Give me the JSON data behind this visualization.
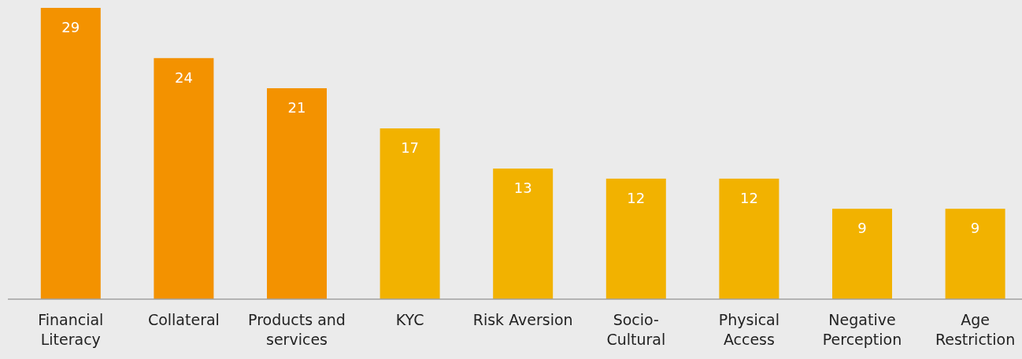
{
  "chart_data": {
    "type": "bar",
    "categories": [
      "Financial\nLiteracy",
      "Collateral",
      "Products and\nservices",
      "KYC",
      "Risk Aversion",
      "Socio-\nCultural",
      "Physical\nAccess",
      "Negative\nPerception",
      "Age\nRestriction"
    ],
    "values": [
      29,
      24,
      21,
      17,
      13,
      12,
      12,
      9,
      9
    ],
    "colors": [
      "#f39200",
      "#f39200",
      "#f39200",
      "#f2b200",
      "#f2b200",
      "#f2b200",
      "#f2b200",
      "#f2b200",
      "#f2b200"
    ],
    "data_labels": true
  }
}
